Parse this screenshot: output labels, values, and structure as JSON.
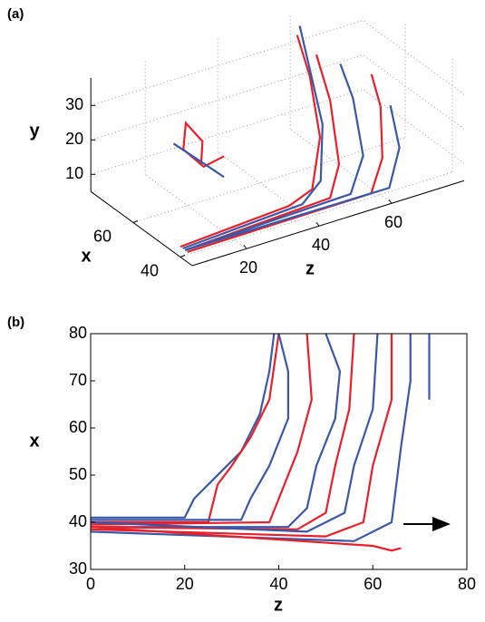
{
  "chart_data": [
    {
      "type": "line3d",
      "panel_label": "(a)",
      "xlabel": "x",
      "ylabel": "y",
      "zlabel": "z",
      "xlim": [
        35,
        78
      ],
      "ylim": [
        5,
        38
      ],
      "zlim": [
        5,
        80
      ],
      "xticks": [
        40,
        60
      ],
      "yticks": [
        10,
        20,
        30
      ],
      "zticks": [
        20,
        40,
        60
      ],
      "grid": true,
      "series": [
        {
          "color": "#e8202a",
          "z": [
            5,
            35,
            42,
            50,
            55,
            58
          ],
          "x": [
            40,
            40,
            41,
            50,
            62,
            72
          ],
          "y": [
            8,
            10,
            12,
            20,
            30,
            36
          ]
        },
        {
          "color": "#3a58a8",
          "z": [
            5,
            38,
            45,
            52,
            56,
            60
          ],
          "x": [
            39,
            39,
            42,
            52,
            64,
            74
          ],
          "y": [
            8,
            10,
            13,
            22,
            32,
            37
          ]
        },
        {
          "color": "#e8202a",
          "z": [
            5,
            45,
            52,
            58,
            62
          ],
          "x": [
            38,
            38,
            45,
            58,
            70
          ],
          "y": [
            8,
            10,
            14,
            24,
            30
          ]
        },
        {
          "color": "#3a58a8",
          "z": [
            5,
            50,
            58,
            63,
            66
          ],
          "x": [
            38,
            37,
            44,
            56,
            66
          ],
          "y": [
            8,
            10,
            15,
            24,
            28
          ]
        },
        {
          "color": "#e8202a",
          "z": [
            5,
            55,
            62,
            68,
            72
          ],
          "x": [
            37,
            36,
            42,
            52,
            62
          ],
          "y": [
            8,
            9,
            14,
            22,
            25
          ]
        },
        {
          "color": "#3a58a8",
          "z": [
            5,
            60,
            68,
            72
          ],
          "x": [
            38,
            36,
            44,
            54
          ],
          "y": [
            8,
            9,
            14,
            20
          ]
        },
        {
          "color": "#e8202a",
          "z": [
            25,
            28,
            26,
            24,
            27,
            30
          ],
          "x": [
            62,
            66,
            70,
            68,
            64,
            60
          ],
          "y": [
            14,
            18,
            22,
            16,
            12,
            16
          ]
        },
        {
          "color": "#3a58a8",
          "z": [
            20,
            24,
            28,
            30
          ],
          "x": [
            66,
            64,
            62,
            60
          ],
          "y": [
            20,
            16,
            12,
            10
          ]
        }
      ]
    },
    {
      "type": "line",
      "panel_label": "(b)",
      "xlabel": "z",
      "ylabel": "x",
      "xlim": [
        0,
        80
      ],
      "ylim": [
        30,
        80
      ],
      "xticks": [
        0,
        20,
        40,
        60,
        80
      ],
      "yticks": [
        30,
        40,
        50,
        60,
        70,
        80
      ],
      "series": [
        {
          "color": "#3a58a8",
          "x": [
            0,
            20,
            22,
            26,
            32,
            36,
            38,
            39
          ],
          "y": [
            41,
            41,
            45,
            49,
            55,
            63,
            72,
            80
          ]
        },
        {
          "color": "#e8202a",
          "x": [
            0,
            25,
            27,
            30,
            34,
            38,
            40
          ],
          "y": [
            40,
            40,
            48,
            52,
            58,
            66,
            80
          ]
        },
        {
          "color": "#3a58a8",
          "x": [
            0,
            32,
            34,
            38,
            42,
            42,
            40
          ],
          "y": [
            40.5,
            40.5,
            45,
            52,
            62,
            72,
            80
          ]
        },
        {
          "color": "#e8202a",
          "x": [
            0,
            38,
            40,
            44,
            47,
            46
          ],
          "y": [
            39.5,
            40,
            45,
            55,
            66,
            80
          ]
        },
        {
          "color": "#3a58a8",
          "x": [
            0,
            42,
            46,
            48,
            52,
            53,
            50
          ],
          "y": [
            39,
            39,
            43,
            52,
            62,
            72,
            80
          ]
        },
        {
          "color": "#e8202a",
          "x": [
            0,
            44,
            50,
            52,
            55,
            56
          ],
          "y": [
            39,
            38.5,
            42,
            52,
            64,
            80
          ]
        },
        {
          "color": "#3a58a8",
          "x": [
            0,
            46,
            54,
            56,
            60,
            61
          ],
          "y": [
            40,
            38,
            42,
            52,
            64,
            80
          ]
        },
        {
          "color": "#e8202a",
          "x": [
            0,
            50,
            58,
            60,
            64,
            64
          ],
          "y": [
            38.5,
            37,
            40,
            52,
            66,
            80
          ]
        },
        {
          "color": "#3a58a8",
          "x": [
            0,
            56,
            64,
            66,
            68,
            68
          ],
          "y": [
            38,
            36,
            40,
            56,
            70,
            80
          ]
        },
        {
          "color": "#e8202a",
          "x": [
            0,
            60,
            64,
            66
          ],
          "y": [
            39,
            35,
            34,
            34.5
          ]
        },
        {
          "color": "#3a58a8",
          "x": [
            72,
            72,
            72
          ],
          "y": [
            66,
            74,
            80
          ]
        }
      ]
    }
  ]
}
